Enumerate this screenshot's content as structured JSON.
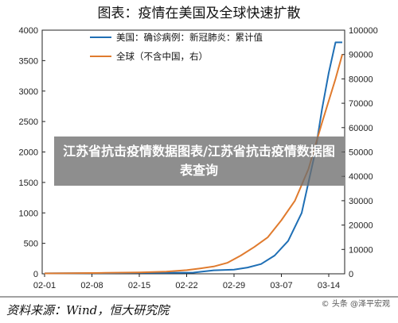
{
  "chart_data": {
    "type": "line",
    "title": "图表：疫情在美国及全球快速扩散",
    "x_ticks": [
      "02-01",
      "02-08",
      "02-15",
      "02-22",
      "02-29",
      "03-07",
      "03-14"
    ],
    "y_left_ticks": [
      "4000",
      "3500",
      "3000",
      "2500",
      "2000",
      "1500",
      "1000",
      "500",
      "0"
    ],
    "y_right_ticks": [
      "100000",
      "90000",
      "80000",
      "70000",
      "60000",
      "50000",
      "40000",
      "30000",
      "20000",
      "10000",
      "0"
    ],
    "ylim_left": [
      0,
      4000
    ],
    "ylim_right": [
      0,
      100000
    ],
    "grid": false,
    "legend_position": "top-left",
    "series": [
      {
        "name": "美国：确诊病例：新冠肺炎：累计值",
        "axis": "left",
        "color": "#1f6fb5",
        "x": [
          "02-01",
          "02-05",
          "02-10",
          "02-15",
          "02-19",
          "02-23",
          "02-26",
          "02-29",
          "03-02",
          "03-04",
          "03-06",
          "03-08",
          "03-10",
          "03-12",
          "03-13",
          "03-14",
          "03-15",
          "03-16"
        ],
        "values": [
          8,
          11,
          12,
          15,
          15,
          20,
          57,
          69,
          103,
          160,
          300,
          540,
          1000,
          2000,
          2700,
          3300,
          3800,
          3800
        ]
      },
      {
        "name": "全球（不含中国，右）",
        "axis": "right",
        "color": "#e07b2e",
        "x": [
          "02-01",
          "02-05",
          "02-10",
          "02-15",
          "02-19",
          "02-22",
          "02-24",
          "02-26",
          "02-28",
          "03-01",
          "03-03",
          "03-05",
          "03-07",
          "03-09",
          "03-11",
          "03-13",
          "03-15",
          "03-16"
        ],
        "values": [
          150,
          230,
          400,
          600,
          900,
          1500,
          2200,
          3000,
          4500,
          7500,
          11000,
          15000,
          22000,
          30000,
          43000,
          62000,
          80000,
          90000
        ]
      }
    ]
  },
  "overlay": {
    "text": "江苏省抗击疫情数据图表/江苏省抗击疫情数据图表查询"
  },
  "source": {
    "text": "资料来源：Wind，恒大研究院"
  },
  "watermark": {
    "text": "© 头条 @泽平宏观"
  }
}
